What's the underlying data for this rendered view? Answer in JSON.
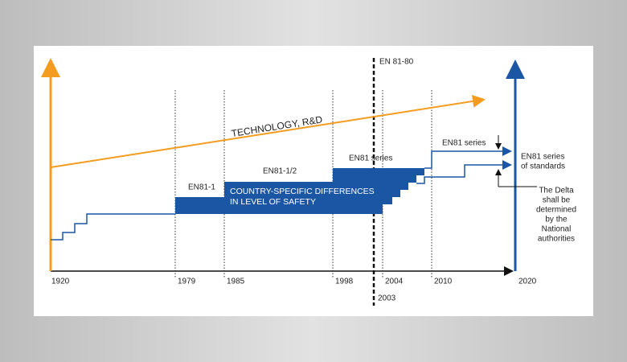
{
  "axis": {
    "years": [
      "1920",
      "1979",
      "1985",
      "1998",
      "2004",
      "2010",
      "2020"
    ]
  },
  "marker": {
    "label": "EN 81-80",
    "year": "2003"
  },
  "technology": "TECHNOLOGY, R&D",
  "phases": [
    "EN81-1",
    "EN81-1/2",
    "EN81 series",
    "EN81 series"
  ],
  "band": [
    "COUNTRY-SPECIFIC DIFFERENCES",
    "IN LEVEL OF SAFETY"
  ],
  "standards": [
    "EN81 series",
    "of standards"
  ],
  "delta": [
    "The Delta",
    "shall be",
    "determined",
    "by the",
    "National",
    "authorities"
  ]
}
